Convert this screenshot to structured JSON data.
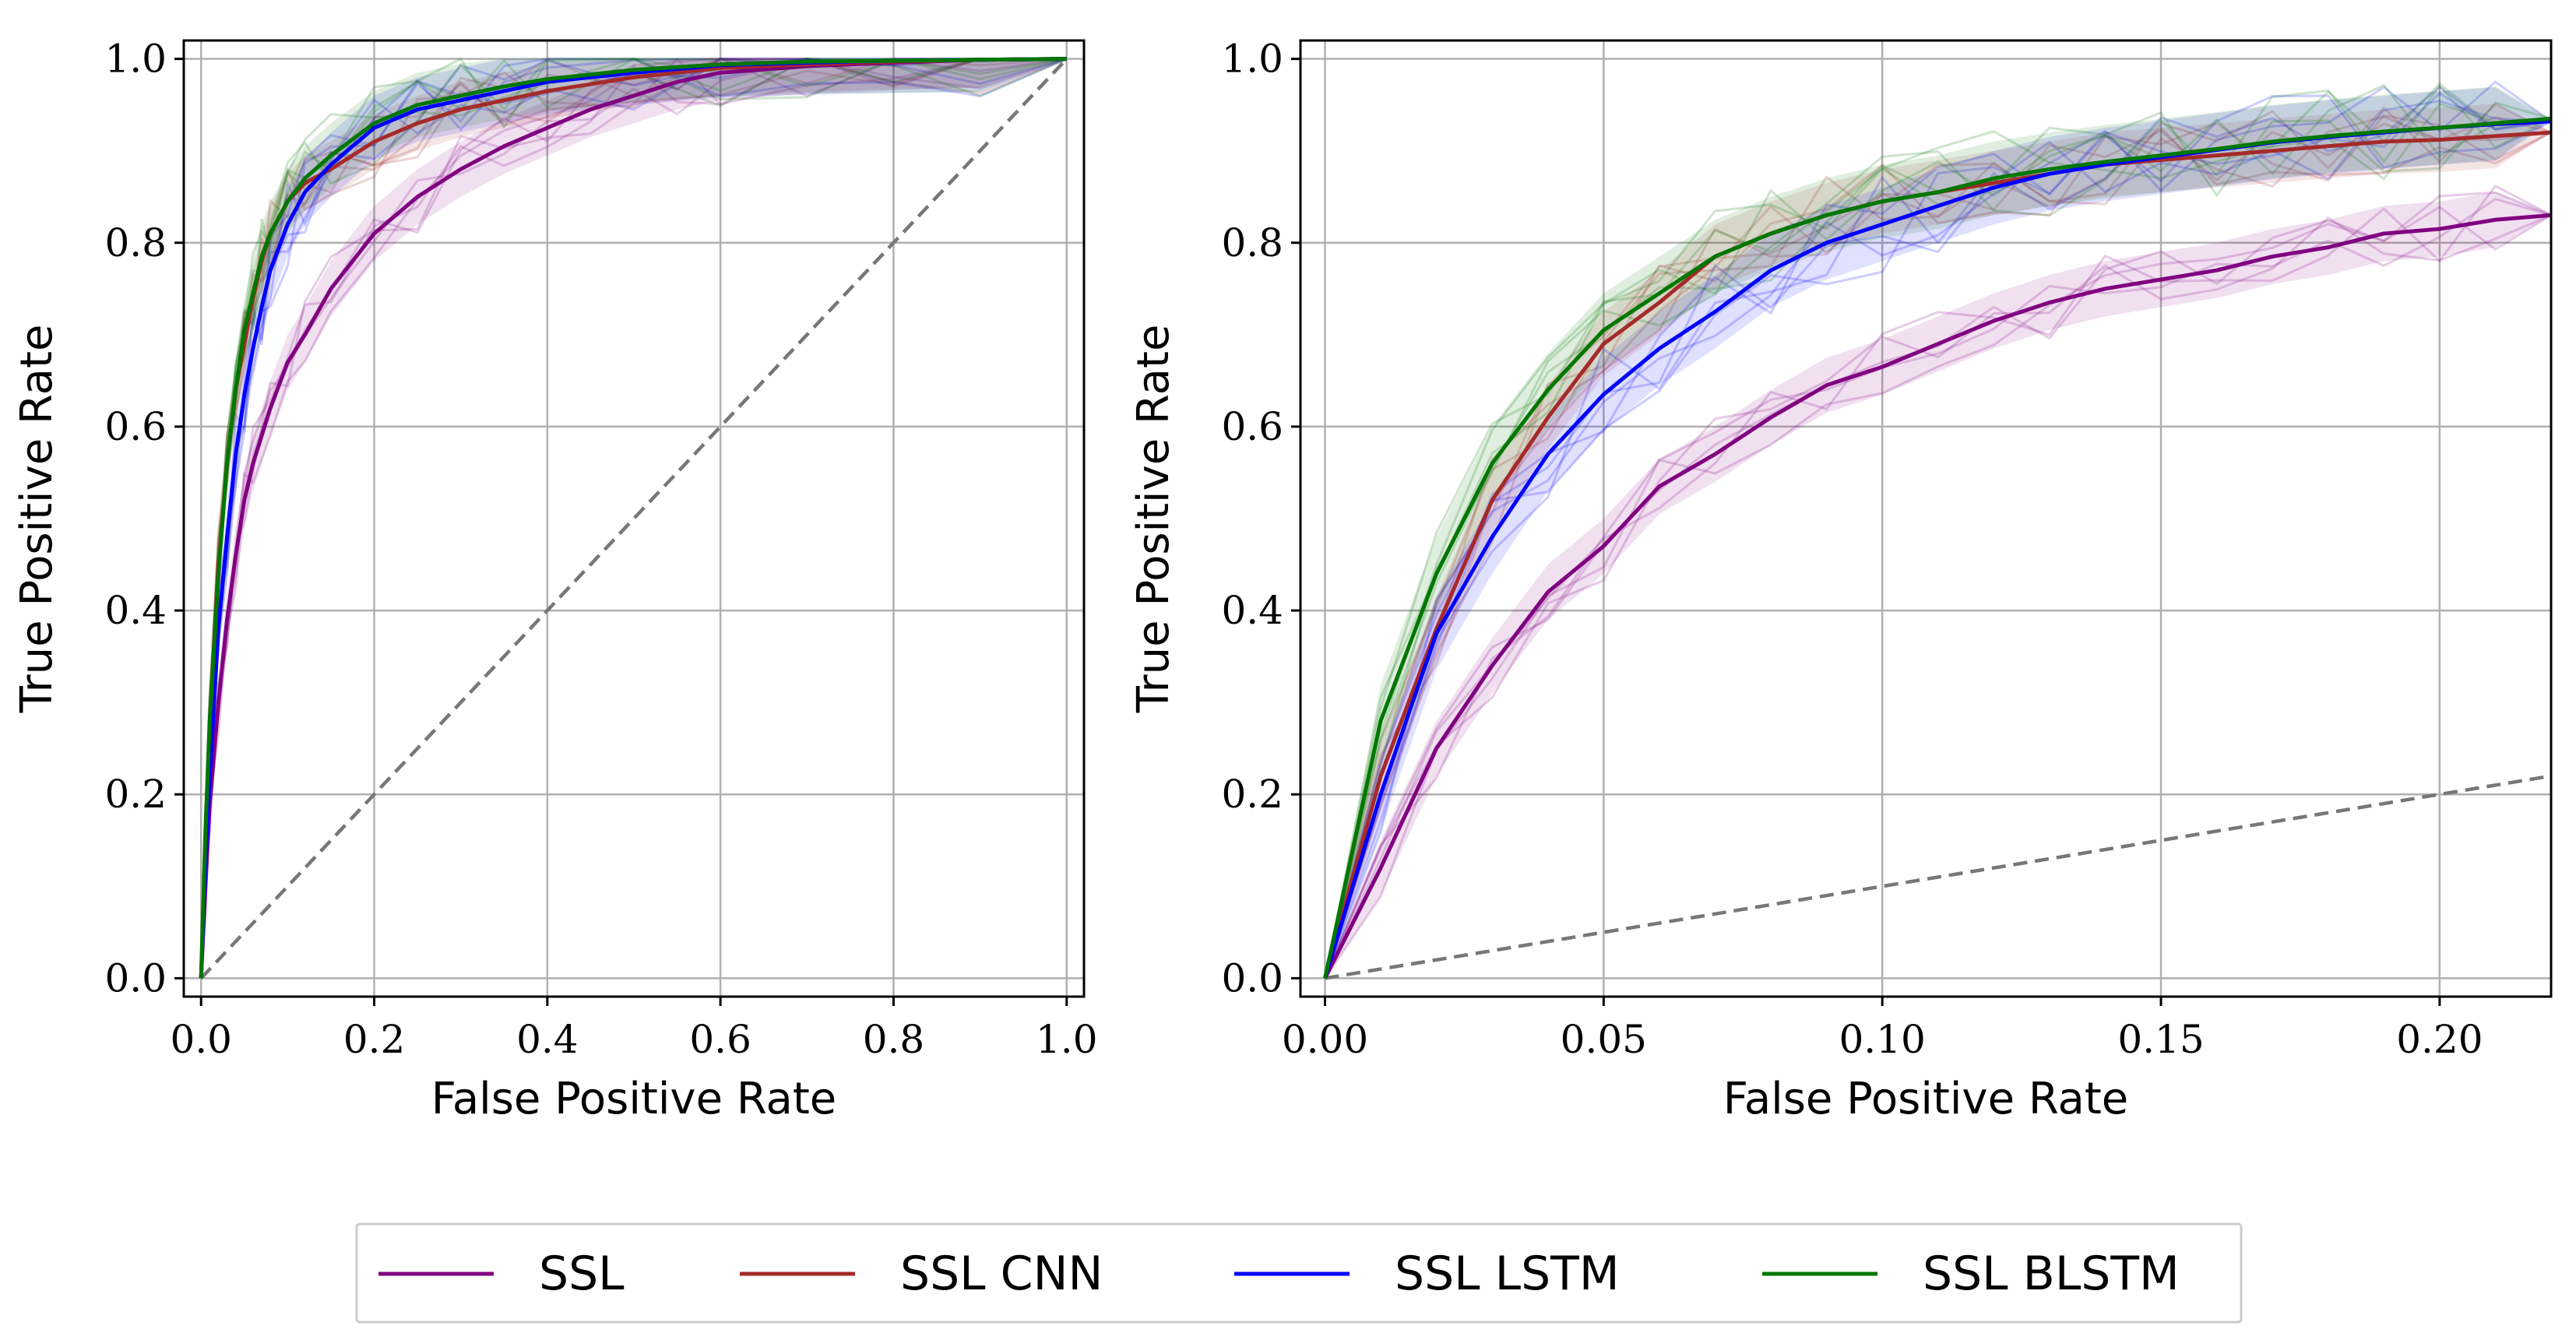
{
  "chart_data": [
    {
      "id": "full",
      "type": "line",
      "xlabel": "False Positive Rate",
      "ylabel": "True Positive Rate",
      "xlim": [
        -0.02,
        1.02
      ],
      "ylim": [
        -0.02,
        1.02
      ],
      "xticks": [
        0.0,
        0.2,
        0.4,
        0.6,
        0.8,
        1.0
      ],
      "xtick_labels": [
        "0.0",
        "0.2",
        "0.4",
        "0.6",
        "0.8",
        "1.0"
      ],
      "yticks": [
        0.0,
        0.2,
        0.4,
        0.6,
        0.8,
        1.0
      ],
      "ytick_labels": [
        "0.0",
        "0.2",
        "0.4",
        "0.6",
        "0.8",
        "1.0"
      ],
      "grid": true,
      "chance_line": {
        "x": [
          0,
          1
        ],
        "y": [
          0,
          1
        ]
      },
      "series": [
        {
          "name": "SSL",
          "color": "#800080",
          "band": 0.03,
          "x": [
            0,
            0.005,
            0.01,
            0.02,
            0.03,
            0.04,
            0.05,
            0.06,
            0.08,
            0.1,
            0.12,
            0.15,
            0.2,
            0.25,
            0.3,
            0.35,
            0.4,
            0.45,
            0.5,
            0.55,
            0.6,
            0.7,
            0.8,
            0.9,
            1.0
          ],
          "y": [
            0,
            0.1,
            0.19,
            0.3,
            0.39,
            0.46,
            0.52,
            0.56,
            0.62,
            0.67,
            0.7,
            0.75,
            0.81,
            0.85,
            0.88,
            0.905,
            0.925,
            0.945,
            0.96,
            0.975,
            0.985,
            0.992,
            0.996,
            0.999,
            1.0
          ]
        },
        {
          "name": "SSL CNN",
          "color": "#a52a2a",
          "band": 0.03,
          "x": [
            0,
            0.005,
            0.01,
            0.02,
            0.03,
            0.04,
            0.05,
            0.06,
            0.07,
            0.08,
            0.1,
            0.12,
            0.15,
            0.2,
            0.25,
            0.3,
            0.35,
            0.4,
            0.5,
            0.6,
            0.7,
            0.8,
            0.9,
            1.0
          ],
          "y": [
            0,
            0.15,
            0.28,
            0.45,
            0.56,
            0.64,
            0.69,
            0.74,
            0.78,
            0.81,
            0.845,
            0.865,
            0.88,
            0.91,
            0.93,
            0.945,
            0.955,
            0.965,
            0.98,
            0.99,
            0.994,
            0.997,
            0.999,
            1.0
          ]
        },
        {
          "name": "SSL LSTM",
          "color": "#0000ff",
          "band": 0.035,
          "x": [
            0,
            0.005,
            0.01,
            0.02,
            0.03,
            0.04,
            0.05,
            0.06,
            0.07,
            0.08,
            0.1,
            0.12,
            0.15,
            0.2,
            0.25,
            0.3,
            0.35,
            0.4,
            0.5,
            0.6,
            0.7,
            0.8,
            0.9,
            1.0
          ],
          "y": [
            0,
            0.12,
            0.22,
            0.38,
            0.48,
            0.57,
            0.635,
            0.685,
            0.73,
            0.77,
            0.82,
            0.855,
            0.885,
            0.925,
            0.945,
            0.955,
            0.965,
            0.975,
            0.985,
            0.993,
            0.996,
            0.998,
            0.999,
            1.0
          ]
        },
        {
          "name": "SSL BLSTM",
          "color": "#007700",
          "band": 0.035,
          "x": [
            0,
            0.005,
            0.01,
            0.02,
            0.03,
            0.04,
            0.05,
            0.06,
            0.07,
            0.08,
            0.1,
            0.12,
            0.15,
            0.2,
            0.25,
            0.3,
            0.35,
            0.4,
            0.5,
            0.6,
            0.7,
            0.8,
            0.9,
            1.0
          ],
          "y": [
            0,
            0.16,
            0.28,
            0.44,
            0.56,
            0.64,
            0.705,
            0.745,
            0.785,
            0.81,
            0.845,
            0.87,
            0.895,
            0.93,
            0.95,
            0.96,
            0.97,
            0.978,
            0.988,
            0.994,
            0.997,
            0.998,
            0.999,
            1.0
          ]
        }
      ]
    },
    {
      "id": "zoom",
      "type": "line",
      "xlabel": "False Positive Rate",
      "ylabel": "True Positive Rate",
      "xlim": [
        -0.0044,
        0.22
      ],
      "ylim": [
        -0.02,
        1.02
      ],
      "xticks": [
        0.0,
        0.05,
        0.1,
        0.15,
        0.2
      ],
      "xtick_labels": [
        "0.00",
        "0.05",
        "0.10",
        "0.15",
        "0.20"
      ],
      "yticks": [
        0.0,
        0.2,
        0.4,
        0.6,
        0.8,
        1.0
      ],
      "ytick_labels": [
        "0.0",
        "0.2",
        "0.4",
        "0.6",
        "0.8",
        "1.0"
      ],
      "grid": true,
      "chance_line": {
        "x": [
          0,
          0.22
        ],
        "y": [
          0,
          0.22
        ]
      },
      "series": [
        {
          "name": "SSL",
          "color": "#800080",
          "band": 0.03,
          "x": [
            0,
            0.01,
            0.02,
            0.03,
            0.04,
            0.05,
            0.06,
            0.07,
            0.08,
            0.09,
            0.1,
            0.11,
            0.12,
            0.13,
            0.14,
            0.15,
            0.16,
            0.17,
            0.18,
            0.19,
            0.2,
            0.21,
            0.22
          ],
          "y": [
            0,
            0.12,
            0.25,
            0.34,
            0.42,
            0.47,
            0.535,
            0.57,
            0.61,
            0.645,
            0.665,
            0.69,
            0.715,
            0.735,
            0.75,
            0.76,
            0.77,
            0.785,
            0.795,
            0.81,
            0.815,
            0.825,
            0.83
          ]
        },
        {
          "name": "SSL CNN",
          "color": "#a52a2a",
          "band": 0.035,
          "x": [
            0,
            0.01,
            0.02,
            0.03,
            0.04,
            0.05,
            0.06,
            0.07,
            0.08,
            0.09,
            0.1,
            0.11,
            0.12,
            0.13,
            0.14,
            0.15,
            0.16,
            0.17,
            0.18,
            0.19,
            0.2,
            0.21,
            0.22
          ],
          "y": [
            0,
            0.22,
            0.38,
            0.52,
            0.61,
            0.69,
            0.735,
            0.785,
            0.81,
            0.83,
            0.845,
            0.855,
            0.865,
            0.875,
            0.885,
            0.89,
            0.895,
            0.9,
            0.905,
            0.91,
            0.912,
            0.916,
            0.92
          ]
        },
        {
          "name": "SSL LSTM",
          "color": "#0000ff",
          "band": 0.04,
          "x": [
            0,
            0.01,
            0.02,
            0.03,
            0.04,
            0.05,
            0.06,
            0.07,
            0.08,
            0.09,
            0.1,
            0.11,
            0.12,
            0.13,
            0.14,
            0.15,
            0.16,
            0.17,
            0.18,
            0.19,
            0.2,
            0.21,
            0.22
          ],
          "y": [
            0,
            0.2,
            0.375,
            0.48,
            0.57,
            0.635,
            0.685,
            0.725,
            0.77,
            0.8,
            0.82,
            0.84,
            0.86,
            0.875,
            0.885,
            0.893,
            0.901,
            0.909,
            0.915,
            0.92,
            0.925,
            0.929,
            0.932
          ]
        },
        {
          "name": "SSL BLSTM",
          "color": "#007700",
          "band": 0.04,
          "x": [
            0,
            0.01,
            0.02,
            0.03,
            0.04,
            0.05,
            0.06,
            0.07,
            0.08,
            0.09,
            0.1,
            0.11,
            0.12,
            0.13,
            0.14,
            0.15,
            0.16,
            0.17,
            0.18,
            0.19,
            0.2,
            0.21,
            0.22
          ],
          "y": [
            0,
            0.28,
            0.44,
            0.56,
            0.64,
            0.705,
            0.745,
            0.785,
            0.81,
            0.83,
            0.845,
            0.855,
            0.87,
            0.88,
            0.888,
            0.895,
            0.902,
            0.91,
            0.916,
            0.921,
            0.925,
            0.93,
            0.935
          ]
        }
      ]
    }
  ],
  "legend": {
    "placement": "bottom-center",
    "entries": [
      {
        "label": "SSL",
        "color": "#800080"
      },
      {
        "label": "SSL CNN",
        "color": "#a52a2a"
      },
      {
        "label": "SSL LSTM",
        "color": "#0000ff"
      },
      {
        "label": "SSL BLSTM",
        "color": "#007700"
      }
    ]
  }
}
